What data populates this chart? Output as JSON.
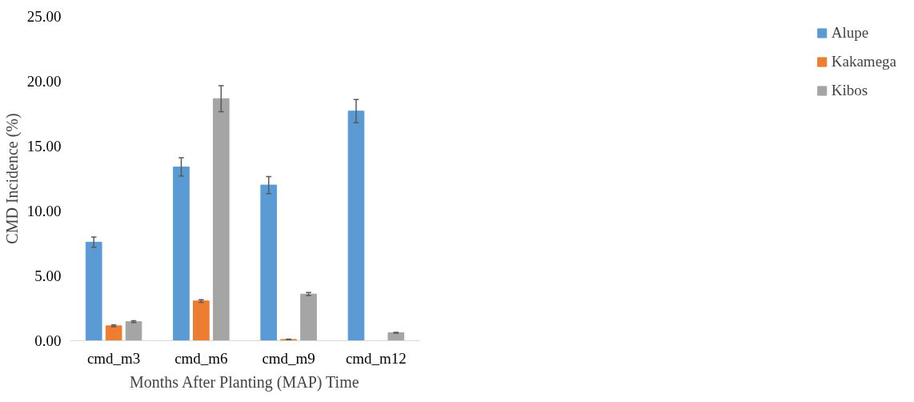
{
  "chart_data": {
    "type": "bar",
    "xlabel": "Months After Planting (MAP) Time",
    "ylabel": "CMD Incidence (%)",
    "categories": [
      "cmd_m3",
      "cmd_m6",
      "cmd_m9",
      "cmd_m12"
    ],
    "series": [
      {
        "name": "Alupe",
        "color": "#5b9bd5",
        "values": [
          7.6,
          13.4,
          12.0,
          17.7
        ],
        "errors": [
          0.4,
          0.7,
          0.65,
          0.9
        ]
      },
      {
        "name": "Kakamega",
        "color": "#ed7d31",
        "values": [
          1.15,
          3.07,
          0.1,
          0
        ],
        "errors": [
          0.07,
          0.1,
          0.03,
          null
        ]
      },
      {
        "name": "Kibos",
        "color": "#a5a5a5",
        "values": [
          1.47,
          18.66,
          3.6,
          0.62
        ],
        "errors": [
          0.07,
          1.0,
          0.12,
          0.03
        ]
      }
    ],
    "ylim": [
      0,
      25
    ],
    "yticks": [
      {
        "value": 0,
        "label": "0.00"
      },
      {
        "value": 5,
        "label": "5.00"
      },
      {
        "value": 10,
        "label": "10.00"
      },
      {
        "value": 15,
        "label": "15.00"
      },
      {
        "value": 20,
        "label": "20.00"
      },
      {
        "value": 25,
        "label": "25.00"
      }
    ],
    "grid": false,
    "legend": "right"
  }
}
